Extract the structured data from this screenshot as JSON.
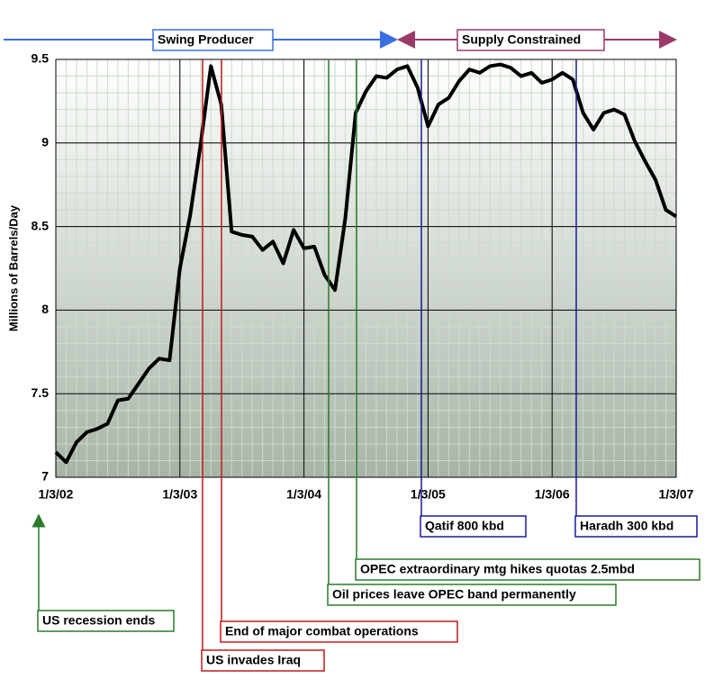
{
  "chart_data": {
    "type": "line",
    "y_label": "Millions of Barrels/Day",
    "x": [
      "2002-01",
      "2002-02",
      "2002-03",
      "2002-04",
      "2002-05",
      "2002-06",
      "2002-07",
      "2002-08",
      "2002-09",
      "2002-10",
      "2002-11",
      "2002-12",
      "2003-01",
      "2003-02",
      "2003-03",
      "2003-04",
      "2003-05",
      "2003-06",
      "2003-07",
      "2003-08",
      "2003-09",
      "2003-10",
      "2003-11",
      "2003-12",
      "2004-01",
      "2004-02",
      "2004-03",
      "2004-04",
      "2004-05",
      "2004-06",
      "2004-07",
      "2004-08",
      "2004-09",
      "2004-10",
      "2004-11",
      "2004-12",
      "2005-01",
      "2005-02",
      "2005-03",
      "2005-04",
      "2005-05",
      "2005-06",
      "2005-07",
      "2005-08",
      "2005-09",
      "2005-10",
      "2005-11",
      "2005-12",
      "2006-01",
      "2006-02",
      "2006-03",
      "2006-04",
      "2006-05",
      "2006-06",
      "2006-07",
      "2006-08",
      "2006-09",
      "2006-10",
      "2006-11",
      "2006-12",
      "2007-01"
    ],
    "series": [
      {
        "color": "#000000",
        "values": [
          7.15,
          7.09,
          7.21,
          7.27,
          7.29,
          7.32,
          7.46,
          7.47,
          7.56,
          7.65,
          7.71,
          7.7,
          8.25,
          8.57,
          8.99,
          9.46,
          9.23,
          8.47,
          8.45,
          8.44,
          8.36,
          8.41,
          8.28,
          8.48,
          8.37,
          8.38,
          8.21,
          8.12,
          8.55,
          9.18,
          9.31,
          9.4,
          9.39,
          9.44,
          9.46,
          9.33,
          9.1,
          9.23,
          9.27,
          9.37,
          9.44,
          9.42,
          9.46,
          9.47,
          9.45,
          9.4,
          9.42,
          9.36,
          9.38,
          9.42,
          9.38,
          9.18,
          9.08,
          9.18,
          9.2,
          9.17,
          9.01,
          8.89,
          8.78,
          8.6,
          8.56
        ]
      }
    ],
    "ylim": [
      7,
      9.5
    ],
    "yticks": [
      7,
      7.5,
      8,
      8.5,
      9,
      9.5
    ],
    "xticks": [
      {
        "value": "2002-01",
        "label": "1/3/02"
      },
      {
        "value": "2003-01",
        "label": "1/3/03"
      },
      {
        "value": "2004-01",
        "label": "1/3/04"
      },
      {
        "value": "2005-01",
        "label": "1/3/05"
      },
      {
        "value": "2006-01",
        "label": "1/3/06"
      },
      {
        "value": "2007-01",
        "label": "1/3/07"
      }
    ],
    "grid": true,
    "phases": [
      "Swing Producer",
      "Supply Constrained"
    ],
    "annotations": [
      "US recession ends",
      "US invades Iraq",
      "End of major combat operations",
      "Oil prices leave OPEC band permanently",
      "OPEC extraordinary mtg hikes quotas 2.5mbd",
      "Qatif 800 kbd",
      "Haradh 300 kbd"
    ]
  }
}
